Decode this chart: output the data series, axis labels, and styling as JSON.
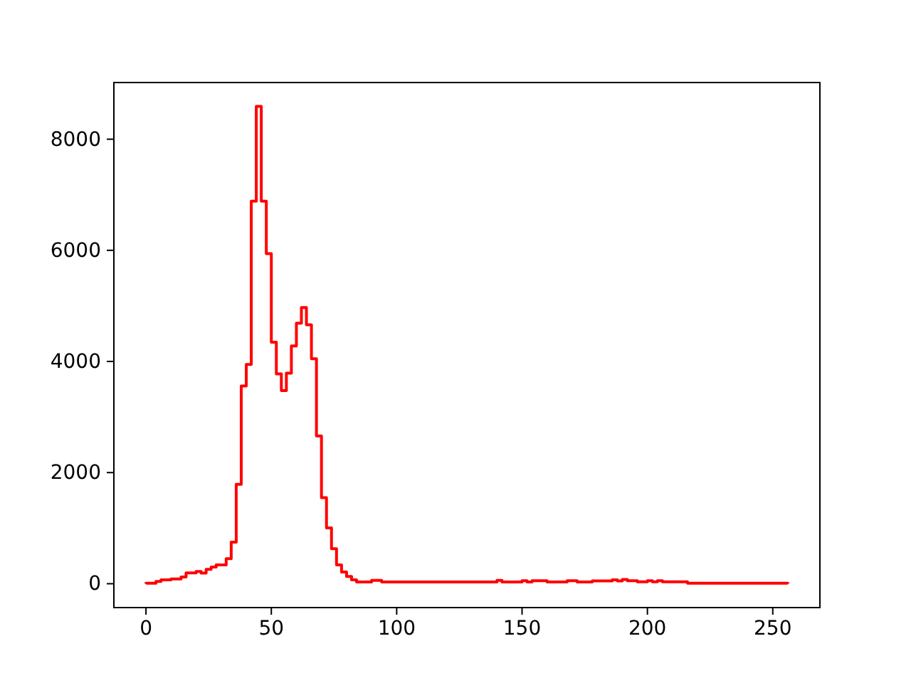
{
  "chart_data": {
    "type": "histogram",
    "bins": [
      0,
      2,
      4,
      6,
      8,
      10,
      12,
      14,
      16,
      18,
      20,
      22,
      24,
      26,
      28,
      30,
      32,
      34,
      36,
      38,
      40,
      42,
      44,
      46,
      48,
      50,
      52,
      54,
      56,
      58,
      60,
      62,
      64,
      66,
      68,
      70,
      72,
      74,
      76,
      78,
      80,
      82,
      84,
      86,
      88,
      90,
      92,
      94,
      96,
      98,
      100,
      102,
      104,
      106,
      108,
      110,
      112,
      114,
      116,
      118,
      120,
      122,
      124,
      126,
      128,
      130,
      132,
      134,
      136,
      138,
      140,
      142,
      144,
      146,
      148,
      150,
      152,
      154,
      156,
      158,
      160,
      162,
      164,
      166,
      168,
      170,
      172,
      174,
      176,
      178,
      180,
      182,
      184,
      186,
      188,
      190,
      192,
      194,
      196,
      198,
      200,
      202,
      204,
      206,
      208,
      210,
      212,
      214,
      216,
      218,
      220,
      222,
      224,
      226,
      228,
      230,
      232,
      234,
      236,
      238,
      240,
      242,
      244,
      246,
      248,
      250,
      252,
      254,
      256
    ],
    "values": [
      10,
      10,
      40,
      70,
      70,
      85,
      85,
      120,
      195,
      195,
      220,
      190,
      260,
      300,
      340,
      340,
      450,
      750,
      1790,
      3560,
      3945,
      6885,
      8590,
      6885,
      5940,
      4345,
      3775,
      3475,
      3790,
      4280,
      4690,
      4970,
      4660,
      4050,
      2660,
      1550,
      1005,
      630,
      340,
      210,
      130,
      70,
      30,
      30,
      30,
      60,
      60,
      30,
      30,
      30,
      30,
      30,
      30,
      30,
      30,
      30,
      30,
      30,
      30,
      30,
      30,
      30,
      30,
      30,
      30,
      30,
      30,
      30,
      30,
      30,
      60,
      30,
      30,
      30,
      30,
      55,
      30,
      55,
      55,
      55,
      30,
      30,
      30,
      30,
      55,
      55,
      30,
      30,
      30,
      50,
      50,
      50,
      50,
      70,
      50,
      75,
      55,
      55,
      35,
      35,
      55,
      35,
      55,
      35,
      35,
      35,
      35,
      35,
      10,
      10,
      10,
      10,
      10,
      10,
      10,
      10,
      10,
      10,
      10,
      10,
      10,
      10,
      10,
      10,
      10,
      10,
      10,
      10
    ],
    "color": "#ff0000",
    "xlim": [
      -12.8,
      268.8
    ],
    "xticks": [
      0,
      50,
      100,
      150,
      200,
      250
    ],
    "ylim": [
      -429.5,
      9019.5
    ],
    "yticks": [
      0,
      2000,
      4000,
      6000,
      8000
    ]
  }
}
